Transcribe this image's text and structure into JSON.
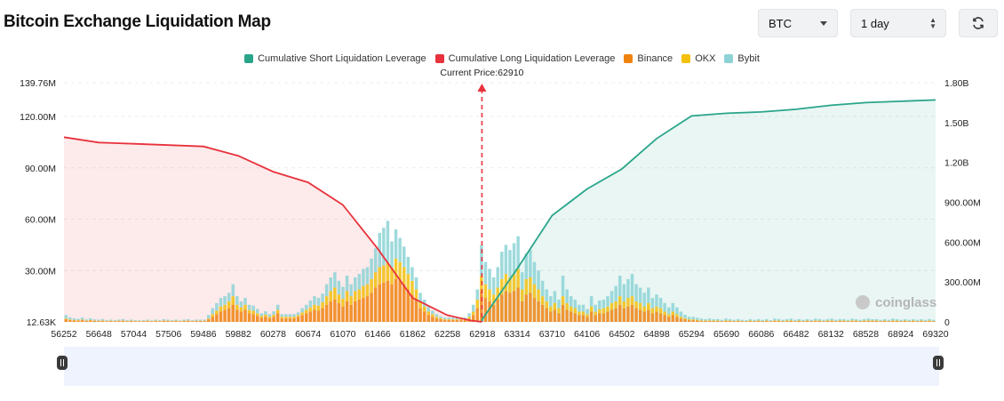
{
  "header": {
    "title": "Bitcoin Exchange Liquidation Map",
    "coin_select": "BTC",
    "range_select": "1 day",
    "refresh_icon": "refresh-icon"
  },
  "watermark": "coinglass",
  "chart_data": {
    "type": "bar",
    "title": "",
    "current_price_label": "Current Price:62910",
    "current_price": 62910,
    "legend_position": "top-center",
    "grid": true,
    "legend": [
      {
        "name": "Cumulative Short Liquidation Leverage",
        "color": "#2aa58a"
      },
      {
        "name": "Cumulative Long Liquidation Leverage",
        "color": "#e8323c"
      },
      {
        "name": "Binance",
        "color": "#f0820f"
      },
      {
        "name": "OKX",
        "color": "#f2c00d"
      },
      {
        "name": "Bybit",
        "color": "#8dd3d6"
      }
    ],
    "x_tick_labels": [
      "56252",
      "56648",
      "57044",
      "57506",
      "59486",
      "59882",
      "60278",
      "60674",
      "61070",
      "61466",
      "61862",
      "62258",
      "62918",
      "63314",
      "63710",
      "64106",
      "64502",
      "64898",
      "65294",
      "65690",
      "66086",
      "66482",
      "68132",
      "68528",
      "68924",
      "69320"
    ],
    "y_left": {
      "min": 0,
      "max": 139.76,
      "unit": "M",
      "tick_labels": [
        "12.63K",
        "30.00M",
        "60.00M",
        "90.00M",
        "120.00M",
        "139.76M"
      ],
      "tick_values": [
        0,
        30,
        60,
        90,
        120,
        139.76
      ]
    },
    "y_right": {
      "min": 0,
      "max": 1.8,
      "unit": "B",
      "tick_labels": [
        "0",
        "300.00M",
        "600.00M",
        "900.00M",
        "1.20B",
        "1.50B",
        "1.80B"
      ],
      "tick_values": [
        0,
        0.3,
        0.6,
        0.9,
        1.2,
        1.5,
        1.8
      ]
    },
    "series": [
      {
        "name": "Binance",
        "stack": [
          1.5,
          1.0,
          0.8,
          0.7,
          1.0,
          0.6,
          0.8,
          0.6,
          0.5,
          0.6,
          0.4,
          0.5,
          0.4,
          0.5,
          0.6,
          0.4,
          0.5,
          0.4,
          0.3,
          0.4,
          0.5,
          0.3,
          0.5,
          0.4,
          0.6,
          0.5,
          0.4,
          0.5,
          0.3,
          0.5,
          0.6,
          0.4,
          0.5,
          0.5,
          0.5,
          1.5,
          3.0,
          4.5,
          6.0,
          7.0,
          8.0,
          10.0,
          7.0,
          6.0,
          7.0,
          5.0,
          4.5,
          3.5,
          2.5,
          3.0,
          2.0,
          3.0,
          5.0,
          2.0,
          2.0,
          2.0,
          2.0,
          3.0,
          4.0,
          5.0,
          6.0,
          7.0,
          6.5,
          8.0,
          10.0,
          12.0,
          13.0,
          11.0,
          9.0,
          12.0,
          10.0,
          12.0,
          13.0,
          14.0,
          15.0,
          17.0,
          20.0,
          22.0,
          23.0,
          24.0,
          22.0,
          25.0,
          24.0,
          22.0,
          19.0,
          16.0,
          13.0,
          8.0,
          6.0,
          4.0,
          3.0,
          2.0,
          1.5,
          1.0,
          1.0,
          1.0,
          1.0,
          1.0,
          1.0,
          2.0,
          4.0,
          8.0,
          18.0,
          14.0,
          12.0,
          10.0,
          13.0,
          16.0,
          18.0,
          17.0,
          18.0,
          20.0,
          12.0,
          16.0,
          17.0,
          14.0,
          12.0,
          10.0,
          8.0,
          6.0,
          7.0,
          5.0,
          10.0,
          7.0,
          6.0,
          5.0,
          4.0,
          4.0,
          3.0,
          6.0,
          4.0,
          5.0,
          5.0,
          6.0,
          7.0,
          8.0,
          10.0,
          8.0,
          9.0,
          10.0,
          8.0,
          7.0,
          6.0,
          7.0,
          5.0,
          6.0,
          5.0,
          4.0,
          3.0,
          4.0,
          3.0,
          2.0,
          1.5,
          1.0,
          1.0,
          0.8,
          0.6,
          0.5,
          0.6,
          0.5,
          0.5,
          0.4,
          0.6,
          0.5,
          0.4,
          0.5,
          0.4,
          0.3,
          0.5,
          0.4,
          0.5,
          0.4,
          0.5,
          0.3,
          0.6,
          0.5,
          0.4,
          0.5,
          0.6,
          0.4,
          0.5,
          0.4,
          0.5,
          0.4,
          0.6,
          0.5,
          0.4,
          0.5,
          0.6,
          0.4,
          0.5,
          0.5,
          0.4,
          0.6,
          0.5,
          0.4,
          0.5,
          0.6,
          0.5,
          0.5,
          0.4,
          0.5,
          0.4,
          0.6,
          0.5,
          0.4,
          0.5,
          0.4,
          0.5,
          0.4,
          0.5,
          0.4,
          0.5,
          0.4
        ]
      },
      {
        "name": "OKX",
        "stack": [
          0.5,
          0.4,
          0.3,
          0.3,
          0.3,
          0.2,
          0.3,
          0.2,
          0.2,
          0.2,
          0.2,
          0.2,
          0.2,
          0.2,
          0.2,
          0.2,
          0.2,
          0.2,
          0.2,
          0.2,
          0.2,
          0.2,
          0.2,
          0.2,
          0.2,
          0.2,
          0.2,
          0.2,
          0.2,
          0.2,
          0.2,
          0.2,
          0.2,
          0.2,
          0.2,
          0.5,
          1.5,
          2.0,
          3.0,
          3.0,
          4.0,
          5.0,
          3.0,
          2.5,
          3.0,
          2.0,
          2.0,
          1.5,
          1.0,
          1.2,
          1.0,
          1.2,
          2.0,
          1.0,
          1.0,
          1.0,
          1.0,
          1.0,
          1.5,
          2.0,
          2.5,
          3.0,
          3.0,
          3.5,
          5.0,
          6.0,
          7.0,
          5.0,
          4.5,
          6.0,
          5.0,
          6.0,
          6.0,
          7.0,
          7.0,
          8.0,
          9.0,
          10.0,
          10.0,
          11.0,
          10.0,
          12.0,
          11.0,
          10.0,
          9.0,
          8.0,
          6.0,
          4.0,
          3.0,
          2.0,
          1.5,
          1.0,
          0.7,
          0.5,
          0.5,
          0.5,
          0.5,
          0.5,
          0.5,
          1.0,
          2.0,
          5.0,
          9.0,
          8.0,
          7.0,
          6.0,
          7.0,
          9.0,
          10.0,
          9.0,
          10.0,
          11.0,
          7.0,
          9.0,
          9.0,
          8.0,
          7.0,
          5.0,
          4.0,
          3.0,
          4.0,
          3.0,
          5.0,
          4.0,
          3.0,
          3.0,
          2.0,
          2.0,
          1.5,
          3.0,
          2.0,
          2.5,
          3.0,
          3.0,
          4.0,
          4.0,
          5.0,
          4.0,
          5.0,
          5.0,
          4.0,
          4.0,
          3.0,
          4.0,
          3.0,
          3.0,
          3.0,
          2.0,
          1.5,
          2.0,
          1.5,
          1.0,
          0.7,
          0.5,
          0.5,
          0.4,
          0.3,
          0.3,
          0.3,
          0.3,
          0.3,
          0.2,
          0.3,
          0.3,
          0.2,
          0.3,
          0.2,
          0.2,
          0.3,
          0.2,
          0.3,
          0.2,
          0.3,
          0.2,
          0.3,
          0.3,
          0.2,
          0.3,
          0.3,
          0.2,
          0.3,
          0.2,
          0.3,
          0.2,
          0.3,
          0.3,
          0.2,
          0.3,
          0.3,
          0.2,
          0.3,
          0.3,
          0.2,
          0.3,
          0.3,
          0.2,
          0.3,
          0.3,
          0.3,
          0.3,
          0.2,
          0.3,
          0.2,
          0.3,
          0.3,
          0.2,
          0.3,
          0.2,
          0.3,
          0.2,
          0.3,
          0.2,
          0.3,
          0.2
        ]
      },
      {
        "name": "Bybit",
        "stack": [
          2.0,
          1.2,
          1.0,
          0.8,
          1.2,
          0.6,
          1.0,
          0.6,
          0.6,
          0.8,
          0.4,
          0.6,
          0.4,
          0.6,
          0.8,
          0.4,
          0.6,
          0.4,
          0.4,
          0.4,
          0.6,
          0.3,
          0.6,
          0.4,
          0.8,
          0.6,
          0.4,
          0.6,
          0.3,
          0.6,
          0.8,
          0.4,
          0.6,
          0.6,
          0.6,
          2.0,
          3.5,
          4.5,
          5.0,
          5.0,
          5.0,
          7.0,
          5.0,
          3.5,
          4.0,
          3.0,
          3.0,
          2.5,
          1.5,
          2.0,
          1.5,
          2.0,
          3.0,
          1.5,
          1.5,
          1.5,
          1.5,
          1.5,
          2.5,
          3.0,
          4.0,
          5.0,
          4.5,
          5.0,
          7.0,
          8.0,
          9.0,
          8.0,
          7.0,
          9.0,
          7.0,
          8.0,
          9.0,
          10.0,
          10.0,
          12.0,
          14.0,
          20.0,
          22.0,
          24.0,
          15.0,
          17.0,
          14.0,
          12.0,
          10.0,
          8.0,
          7.0,
          5.0,
          4.0,
          3.0,
          2.0,
          1.5,
          1.0,
          1.0,
          1.0,
          1.0,
          1.0,
          1.0,
          1.0,
          2.0,
          4.0,
          6.0,
          18.0,
          13.0,
          12.0,
          10.0,
          12.0,
          16.0,
          17.0,
          16.0,
          18.0,
          19.0,
          10.0,
          15.0,
          16.0,
          13.0,
          11.0,
          9.0,
          7.0,
          6.0,
          7.0,
          5.0,
          12.0,
          8.0,
          6.0,
          5.0,
          4.0,
          4.0,
          3.0,
          6.0,
          4.0,
          5.0,
          5.0,
          6.0,
          7.0,
          9.0,
          12.0,
          10.0,
          11.0,
          13.0,
          10.0,
          9.0,
          8.0,
          9.0,
          6.0,
          7.0,
          6.0,
          5.0,
          4.0,
          5.0,
          4.0,
          3.0,
          2.0,
          1.5,
          1.5,
          1.2,
          1.0,
          0.8,
          1.0,
          0.8,
          0.8,
          0.6,
          1.0,
          0.8,
          0.6,
          0.8,
          0.6,
          0.5,
          0.8,
          0.6,
          0.8,
          0.6,
          0.8,
          0.5,
          1.0,
          0.8,
          0.6,
          0.8,
          1.0,
          0.6,
          0.8,
          0.6,
          0.8,
          0.6,
          1.0,
          0.8,
          0.6,
          0.8,
          1.0,
          0.6,
          0.8,
          0.8,
          0.6,
          1.0,
          0.8,
          0.6,
          0.8,
          1.0,
          0.8,
          0.8,
          0.6,
          0.8,
          0.6,
          1.0,
          0.8,
          0.6,
          0.8,
          0.6,
          0.8,
          0.6,
          0.8,
          0.6,
          0.8,
          0.6
        ]
      },
      {
        "name": "Cumulative Long Liquidation Leverage",
        "x": [
          56252,
          56648,
          57044,
          57506,
          59486,
          59882,
          60278,
          60674,
          61070,
          61466,
          61862,
          62258,
          62700,
          62910
        ],
        "y": [
          1.39,
          1.35,
          1.34,
          1.33,
          1.32,
          1.25,
          1.13,
          1.05,
          0.88,
          0.55,
          0.18,
          0.05,
          0.01,
          0.0
        ]
      },
      {
        "name": "Cumulative Short Liquidation Leverage",
        "x": [
          62910,
          62918,
          63314,
          63710,
          64106,
          64502,
          64898,
          65294,
          65690,
          66086,
          66482,
          68132,
          68528,
          68924,
          69320
        ],
        "y": [
          0.0,
          0.02,
          0.4,
          0.8,
          1.0,
          1.15,
          1.38,
          1.55,
          1.57,
          1.58,
          1.6,
          1.63,
          1.65,
          1.66,
          1.67
        ]
      }
    ]
  }
}
